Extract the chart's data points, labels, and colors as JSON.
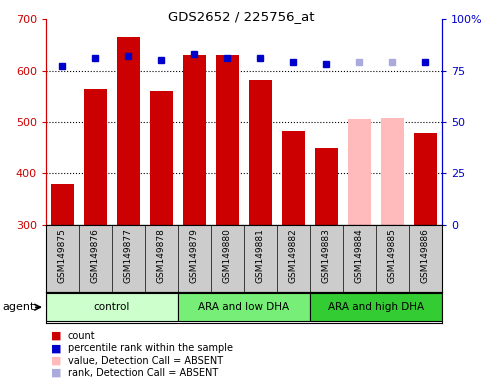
{
  "title": "GDS2652 / 225756_at",
  "samples": [
    "GSM149875",
    "GSM149876",
    "GSM149877",
    "GSM149878",
    "GSM149879",
    "GSM149880",
    "GSM149881",
    "GSM149882",
    "GSM149883",
    "GSM149884",
    "GSM149885",
    "GSM149886"
  ],
  "bar_values": [
    380,
    565,
    665,
    560,
    630,
    630,
    582,
    482,
    450,
    505,
    507,
    478
  ],
  "bar_colors": [
    "#cc0000",
    "#cc0000",
    "#cc0000",
    "#cc0000",
    "#cc0000",
    "#cc0000",
    "#cc0000",
    "#cc0000",
    "#cc0000",
    "#ffbbbb",
    "#ffbbbb",
    "#cc0000"
  ],
  "dot_values_pct": [
    77,
    81,
    82,
    80,
    83,
    81,
    81,
    79,
    78,
    79,
    79,
    79
  ],
  "dot_colors": [
    "#0000cc",
    "#0000cc",
    "#0000cc",
    "#0000cc",
    "#0000cc",
    "#0000cc",
    "#0000cc",
    "#0000cc",
    "#0000cc",
    "#aaaadd",
    "#aaaadd",
    "#0000cc"
  ],
  "absent_mask": [
    false,
    false,
    false,
    false,
    false,
    false,
    false,
    false,
    false,
    true,
    true,
    false
  ],
  "ylim_left": [
    300,
    700
  ],
  "ylim_right": [
    0,
    100
  ],
  "yticks_left": [
    300,
    400,
    500,
    600,
    700
  ],
  "yticks_right": [
    0,
    25,
    50,
    75,
    100
  ],
  "groups": [
    {
      "label": "control",
      "start": 0,
      "end": 3,
      "color": "#ccffcc"
    },
    {
      "label": "ARA and low DHA",
      "start": 4,
      "end": 7,
      "color": "#77ee77"
    },
    {
      "label": "ARA and high DHA",
      "start": 8,
      "end": 11,
      "color": "#33cc33"
    }
  ],
  "agent_label": "agent",
  "left_axis_color": "#cc0000",
  "right_axis_color": "#0000cc",
  "bar_bottom": 300,
  "grid_yticks": [
    400,
    500,
    600
  ],
  "label_fontsize": 6.5,
  "legend_items": [
    {
      "color": "#cc0000",
      "label": "count"
    },
    {
      "color": "#0000cc",
      "label": "percentile rank within the sample"
    },
    {
      "color": "#ffbbbb",
      "label": "value, Detection Call = ABSENT"
    },
    {
      "color": "#aaaadd",
      "label": "rank, Detection Call = ABSENT"
    }
  ]
}
